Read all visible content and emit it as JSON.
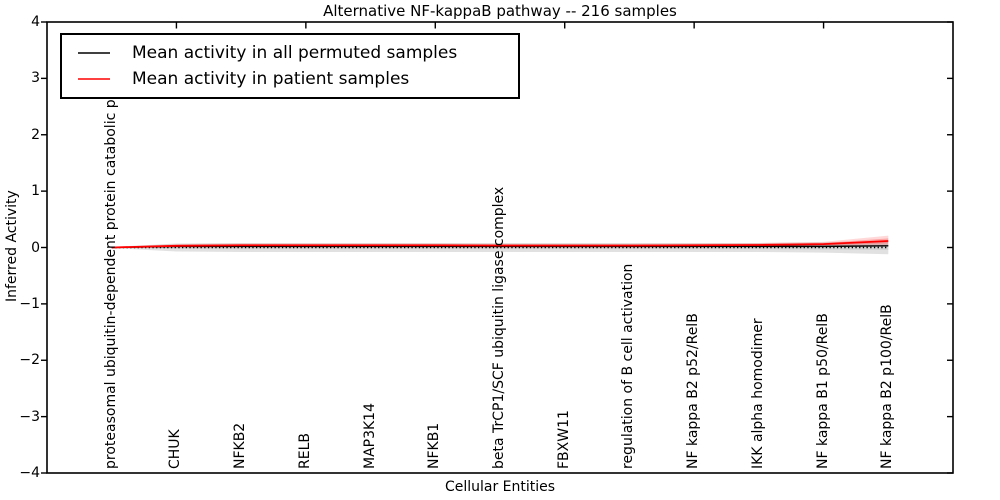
{
  "chart_data": {
    "type": "line",
    "title": "Alternative NF-kappaB pathway -- 216 samples",
    "xlabel": "Cellular Entities",
    "ylabel": "Inferred Activity",
    "ylim": [
      -4,
      4
    ],
    "xlim": [
      0,
      14
    ],
    "grid": false,
    "legend_position": "upper-left",
    "yticks": [
      "4",
      "3",
      "2",
      "1",
      "0",
      "−1",
      "−2",
      "−3",
      "−4"
    ],
    "ytick_values": [
      4,
      3,
      2,
      1,
      0,
      -1,
      -2,
      -3,
      -4
    ],
    "top_tick_positions": [
      2,
      4,
      6,
      8,
      10,
      12
    ],
    "categories": [
      "proteasomal ubiquitin-dependent protein catabolic pr",
      "CHUK",
      "NFKB2",
      "RELB",
      "MAP3K14",
      "NFKB1",
      "beta TrCP1/SCF ubiquitin ligase complex",
      "FBXW11",
      "regulation of B cell activation",
      "NF kappa B2 p52/RelB",
      "IKK alpha homodimer",
      "NF kappa B1 p50/RelB",
      "NF kappa B2 p100/RelB"
    ],
    "series": [
      {
        "name": "Mean activity in all permuted samples",
        "color": "#000000",
        "values": [
          0.0,
          0.02,
          0.02,
          0.02,
          0.02,
          0.02,
          0.02,
          0.02,
          0.02,
          0.02,
          0.02,
          0.02,
          0.03
        ],
        "band": {
          "upper": [
            0.01,
            0.07,
            0.08,
            0.08,
            0.08,
            0.08,
            0.08,
            0.08,
            0.08,
            0.08,
            0.08,
            0.09,
            0.1
          ],
          "lower": [
            -0.01,
            -0.07,
            -0.08,
            -0.08,
            -0.08,
            -0.08,
            -0.08,
            -0.08,
            -0.08,
            -0.08,
            -0.08,
            -0.09,
            -0.12
          ],
          "color": "#c8c8c8",
          "opacity": 0.55
        }
      },
      {
        "name": "Mean activity in patient samples",
        "color": "#ff0000",
        "values": [
          0.0,
          0.03,
          0.04,
          0.04,
          0.04,
          0.04,
          0.035,
          0.035,
          0.035,
          0.04,
          0.045,
          0.06,
          0.115
        ],
        "band": {
          "upper": [
            0.01,
            0.06,
            0.07,
            0.07,
            0.07,
            0.07,
            0.065,
            0.065,
            0.065,
            0.07,
            0.08,
            0.1,
            0.21
          ],
          "lower": [
            -0.01,
            0.0,
            0.005,
            0.005,
            0.005,
            0.005,
            0.0,
            0.0,
            0.0,
            0.005,
            0.01,
            0.02,
            0.03
          ],
          "color": "#ff0000",
          "opacity": 0.15
        }
      }
    ],
    "zero_line": {
      "y": 0,
      "style": "dotted",
      "color": "#000000"
    }
  }
}
